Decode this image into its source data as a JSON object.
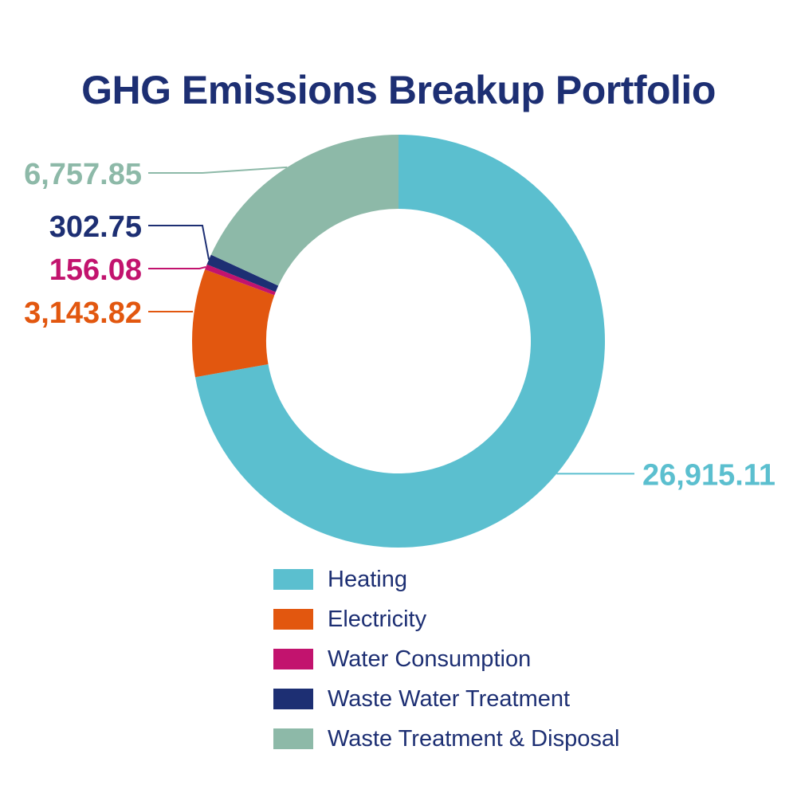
{
  "colors": {
    "title": "#1d2f73",
    "legend_text": "#1d2f73",
    "background": "#ffffff"
  },
  "chart_data": {
    "type": "pie",
    "variant": "donut",
    "title": "GHG Emissions Breakup Portfolio",
    "legend_position": "bottom",
    "slices": [
      {
        "label": "Heating",
        "value": 26915.11,
        "value_label": "26,915.11",
        "color": "#5bbfcf"
      },
      {
        "label": "Electricity",
        "value": 3143.82,
        "value_label": "3,143.82",
        "color": "#e2570f"
      },
      {
        "label": "Water Consumption",
        "value": 156.08,
        "value_label": "156.08",
        "color": "#c2136e"
      },
      {
        "label": "Waste Water Treatment",
        "value": 302.75,
        "value_label": "302.75",
        "color": "#1d2f73"
      },
      {
        "label": "Waste Treatment & Disposal",
        "value": 6757.85,
        "value_label": "6,757.85",
        "color": "#8db9a8"
      }
    ]
  }
}
